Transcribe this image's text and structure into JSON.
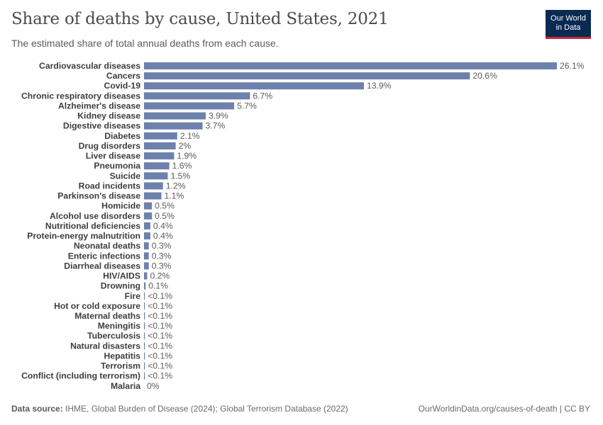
{
  "header": {
    "title": "Share of deaths by cause, United States, 2021",
    "subtitle": "The estimated share of total annual deaths from each cause.",
    "logo_line1": "Our World",
    "logo_line2": "in Data"
  },
  "footer": {
    "source_label": "Data source:",
    "source_text": "IHME, Global Burden of Disease (2024); Global Terrorism Database (2022)",
    "url_text": "OurWorldinData.org/causes-of-death | CC BY"
  },
  "colors": {
    "bar": "#6d81ad",
    "label": "#3d3d3d",
    "value": "#5b5b5b",
    "logo_bg": "#0b2a52",
    "logo_accent": "#c8263b"
  },
  "chart_data": {
    "type": "bar",
    "orientation": "horizontal",
    "unit": "%",
    "xlim": [
      0,
      26.1
    ],
    "categories": [
      "Cardiovascular diseases",
      "Cancers",
      "Covid-19",
      "Chronic respiratory diseases",
      "Alzheimer's disease",
      "Kidney disease",
      "Digestive diseases",
      "Diabetes",
      "Drug disorders",
      "Liver disease",
      "Pneumonia",
      "Suicide",
      "Road incidents",
      "Parkinson's disease",
      "Homicide",
      "Alcohol use disorders",
      "Nutritional deficiencies",
      "Protein-energy malnutrition",
      "Neonatal deaths",
      "Enteric infections",
      "Diarrheal diseases",
      "HIV/AIDS",
      "Drowning",
      "Fire",
      "Hot or cold exposure",
      "Maternal deaths",
      "Meningitis",
      "Tuberculosis",
      "Natural disasters",
      "Hepatitis",
      "Terrorism",
      "Conflict (including terrorism)",
      "Malaria"
    ],
    "values": [
      26.1,
      20.6,
      13.9,
      6.7,
      5.7,
      3.9,
      3.7,
      2.1,
      2,
      1.9,
      1.6,
      1.5,
      1.2,
      1.1,
      0.5,
      0.5,
      0.4,
      0.4,
      0.3,
      0.3,
      0.3,
      0.2,
      0.1,
      0.05,
      0.05,
      0.05,
      0.05,
      0.05,
      0.05,
      0.05,
      0.05,
      0.05,
      0
    ],
    "value_labels": [
      "26.1%",
      "20.6%",
      "13.9%",
      "6.7%",
      "5.7%",
      "3.9%",
      "3.7%",
      "2.1%",
      "2%",
      "1.9%",
      "1.6%",
      "1.5%",
      "1.2%",
      "1.1%",
      "0.5%",
      "0.5%",
      "0.4%",
      "0.4%",
      "0.3%",
      "0.3%",
      "0.3%",
      "0.2%",
      "0.1%",
      "<0.1%",
      "<0.1%",
      "<0.1%",
      "<0.1%",
      "<0.1%",
      "<0.1%",
      "<0.1%",
      "<0.1%",
      "<0.1%",
      "0%"
    ]
  }
}
